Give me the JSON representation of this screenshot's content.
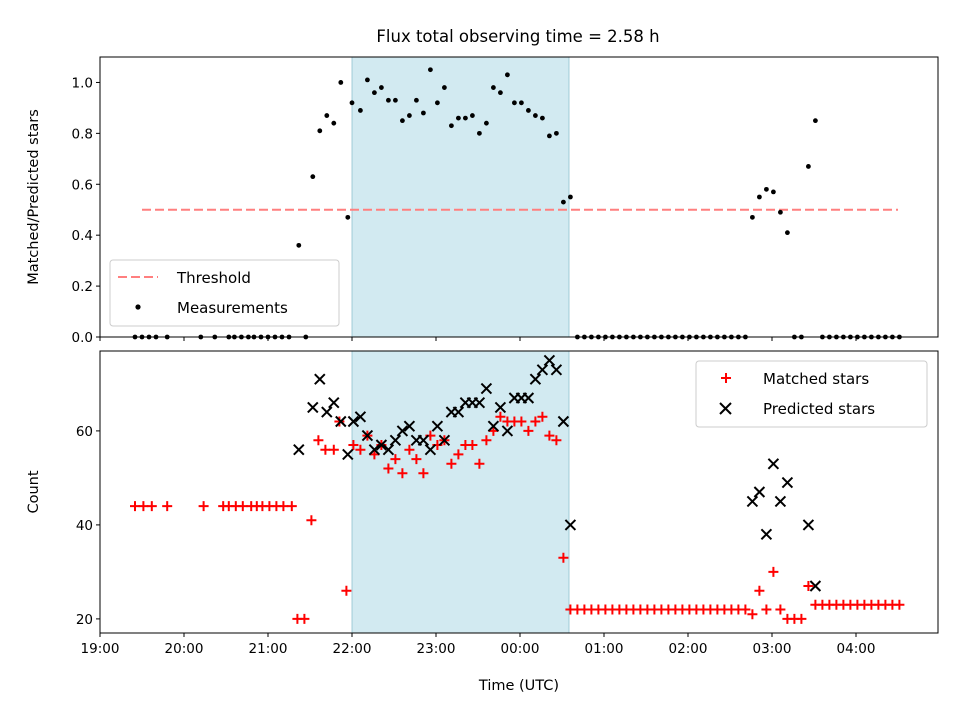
{
  "title": "Flux total observing time = 2.58 h",
  "colors": {
    "threshold": "#ff7f7f",
    "measurement": "#000000",
    "matched": "#ff0000",
    "predicted": "#000000",
    "shade": "#add8e6"
  },
  "chart_data": [
    {
      "type": "scatter",
      "panel": "top",
      "ylabel": "Matched/Predicted stars",
      "ylim": [
        0,
        1.1
      ],
      "yticks": [
        "0.0",
        "0.2",
        "0.4",
        "0.6",
        "0.8",
        "1.0"
      ],
      "xlim": [
        "19:00",
        "04:55"
      ],
      "shaded_interval": [
        "22:00",
        "00:35"
      ],
      "threshold": {
        "label": "Threshold",
        "value": 0.5,
        "x": [
          "19:30",
          "04:30"
        ]
      },
      "series": [
        {
          "name": "Measurements",
          "points": [
            [
              "19:25",
              0.0
            ],
            [
              "19:30",
              0.0
            ],
            [
              "19:35",
              0.0
            ],
            [
              "19:40",
              0.0
            ],
            [
              "19:48",
              0.0
            ],
            [
              "20:12",
              0.0
            ],
            [
              "20:22",
              0.0
            ],
            [
              "20:32",
              0.0
            ],
            [
              "20:36",
              0.0
            ],
            [
              "20:41",
              0.0
            ],
            [
              "20:46",
              0.0
            ],
            [
              "20:50",
              0.0
            ],
            [
              "20:55",
              0.0
            ],
            [
              "21:00",
              0.0
            ],
            [
              "21:05",
              0.0
            ],
            [
              "21:10",
              0.0
            ],
            [
              "21:15",
              0.0
            ],
            [
              "21:22",
              0.36
            ],
            [
              "21:27",
              0.0
            ],
            [
              "21:32",
              0.63
            ],
            [
              "21:37",
              0.81
            ],
            [
              "21:42",
              0.87
            ],
            [
              "21:47",
              0.84
            ],
            [
              "21:52",
              1.0
            ],
            [
              "21:57",
              0.47
            ],
            [
              "22:00",
              0.92
            ],
            [
              "22:06",
              0.89
            ],
            [
              "22:11",
              1.01
            ],
            [
              "22:16",
              0.96
            ],
            [
              "22:21",
              0.98
            ],
            [
              "22:26",
              0.93
            ],
            [
              "22:31",
              0.93
            ],
            [
              "22:36",
              0.85
            ],
            [
              "22:41",
              0.87
            ],
            [
              "22:46",
              0.93
            ],
            [
              "22:51",
              0.88
            ],
            [
              "22:56",
              1.05
            ],
            [
              "23:01",
              0.92
            ],
            [
              "23:06",
              0.98
            ],
            [
              "23:11",
              0.83
            ],
            [
              "23:16",
              0.86
            ],
            [
              "23:21",
              0.86
            ],
            [
              "23:26",
              0.87
            ],
            [
              "23:31",
              0.8
            ],
            [
              "23:36",
              0.84
            ],
            [
              "23:41",
              0.98
            ],
            [
              "23:46",
              0.96
            ],
            [
              "23:51",
              1.03
            ],
            [
              "23:56",
              0.92
            ],
            [
              "00:01",
              0.92
            ],
            [
              "00:06",
              0.89
            ],
            [
              "00:11",
              0.87
            ],
            [
              "00:16",
              0.86
            ],
            [
              "00:21",
              0.79
            ],
            [
              "00:26",
              0.8
            ],
            [
              "00:31",
              0.53
            ],
            [
              "00:36",
              0.55
            ],
            [
              "00:41",
              0.0
            ],
            [
              "00:46",
              0.0
            ],
            [
              "00:51",
              0.0
            ],
            [
              "00:56",
              0.0
            ],
            [
              "01:01",
              0.0
            ],
            [
              "01:06",
              0.0
            ],
            [
              "01:11",
              0.0
            ],
            [
              "01:16",
              0.0
            ],
            [
              "01:21",
              0.0
            ],
            [
              "01:26",
              0.0
            ],
            [
              "01:31",
              0.0
            ],
            [
              "01:36",
              0.0
            ],
            [
              "01:41",
              0.0
            ],
            [
              "01:46",
              0.0
            ],
            [
              "01:51",
              0.0
            ],
            [
              "01:56",
              0.0
            ],
            [
              "02:01",
              0.0
            ],
            [
              "02:06",
              0.0
            ],
            [
              "02:11",
              0.0
            ],
            [
              "02:16",
              0.0
            ],
            [
              "02:21",
              0.0
            ],
            [
              "02:26",
              0.0
            ],
            [
              "02:31",
              0.0
            ],
            [
              "02:36",
              0.0
            ],
            [
              "02:41",
              0.0
            ],
            [
              "02:46",
              0.47
            ],
            [
              "02:51",
              0.55
            ],
            [
              "02:56",
              0.58
            ],
            [
              "03:01",
              0.57
            ],
            [
              "03:06",
              0.49
            ],
            [
              "03:11",
              0.41
            ],
            [
              "03:16",
              0.0
            ],
            [
              "03:21",
              0.0
            ],
            [
              "03:26",
              0.67
            ],
            [
              "03:31",
              0.85
            ],
            [
              "03:36",
              0.0
            ],
            [
              "03:41",
              0.0
            ],
            [
              "03:46",
              0.0
            ],
            [
              "03:51",
              0.0
            ],
            [
              "03:56",
              0.0
            ],
            [
              "04:01",
              0.0
            ],
            [
              "04:06",
              0.0
            ],
            [
              "04:11",
              0.0
            ],
            [
              "04:16",
              0.0
            ],
            [
              "04:21",
              0.0
            ],
            [
              "04:26",
              0.0
            ],
            [
              "04:31",
              0.0
            ]
          ]
        }
      ],
      "legend": {
        "placement": "lower-left",
        "entries": [
          "Threshold",
          "Measurements"
        ]
      }
    },
    {
      "type": "scatter",
      "panel": "bottom",
      "xlabel": "Time (UTC)",
      "ylabel": "Count",
      "ylim": [
        17,
        77
      ],
      "yticks": [
        "20",
        "40",
        "60"
      ],
      "xlim": [
        "19:00",
        "04:55"
      ],
      "xticks": [
        "19:00",
        "20:00",
        "21:00",
        "22:00",
        "23:00",
        "00:00",
        "01:00",
        "02:00",
        "03:00",
        "04:00"
      ],
      "shaded_interval": [
        "22:00",
        "00:35"
      ],
      "series": [
        {
          "name": "Matched stars",
          "marker": "plus",
          "points": [
            [
              "19:25",
              44
            ],
            [
              "19:31",
              44
            ],
            [
              "19:37",
              44
            ],
            [
              "19:48",
              44
            ],
            [
              "20:14",
              44
            ],
            [
              "20:28",
              44
            ],
            [
              "20:32",
              44
            ],
            [
              "20:37",
              44
            ],
            [
              "20:42",
              44
            ],
            [
              "20:48",
              44
            ],
            [
              "20:52",
              44
            ],
            [
              "20:56",
              44
            ],
            [
              "21:01",
              44
            ],
            [
              "21:06",
              44
            ],
            [
              "21:11",
              44
            ],
            [
              "21:17",
              44
            ],
            [
              "21:21",
              20
            ],
            [
              "21:26",
              20
            ],
            [
              "21:31",
              41
            ],
            [
              "21:36",
              58
            ],
            [
              "21:41",
              56
            ],
            [
              "21:47",
              56
            ],
            [
              "21:51",
              62
            ],
            [
              "21:56",
              26
            ],
            [
              "22:01",
              57
            ],
            [
              "22:06",
              56
            ],
            [
              "22:11",
              59
            ],
            [
              "22:16",
              55
            ],
            [
              "22:21",
              57
            ],
            [
              "22:26",
              52
            ],
            [
              "22:31",
              54
            ],
            [
              "22:36",
              51
            ],
            [
              "22:41",
              56
            ],
            [
              "22:46",
              54
            ],
            [
              "22:51",
              51
            ],
            [
              "22:56",
              59
            ],
            [
              "23:01",
              57
            ],
            [
              "23:06",
              58
            ],
            [
              "23:11",
              53
            ],
            [
              "23:16",
              55
            ],
            [
              "23:21",
              57
            ],
            [
              "23:26",
              57
            ],
            [
              "23:31",
              53
            ],
            [
              "23:36",
              58
            ],
            [
              "23:41",
              60
            ],
            [
              "23:46",
              63
            ],
            [
              "23:51",
              62
            ],
            [
              "23:56",
              62
            ],
            [
              "00:01",
              62
            ],
            [
              "00:06",
              60
            ],
            [
              "00:11",
              62
            ],
            [
              "00:16",
              63
            ],
            [
              "00:21",
              59
            ],
            [
              "00:26",
              58
            ],
            [
              "00:31",
              33
            ],
            [
              "00:36",
              22
            ],
            [
              "00:41",
              22
            ],
            [
              "00:46",
              22
            ],
            [
              "00:51",
              22
            ],
            [
              "00:56",
              22
            ],
            [
              "01:01",
              22
            ],
            [
              "01:06",
              22
            ],
            [
              "01:11",
              22
            ],
            [
              "01:16",
              22
            ],
            [
              "01:21",
              22
            ],
            [
              "01:26",
              22
            ],
            [
              "01:31",
              22
            ],
            [
              "01:36",
              22
            ],
            [
              "01:41",
              22
            ],
            [
              "01:46",
              22
            ],
            [
              "01:51",
              22
            ],
            [
              "01:56",
              22
            ],
            [
              "02:01",
              22
            ],
            [
              "02:06",
              22
            ],
            [
              "02:11",
              22
            ],
            [
              "02:16",
              22
            ],
            [
              "02:21",
              22
            ],
            [
              "02:26",
              22
            ],
            [
              "02:31",
              22
            ],
            [
              "02:36",
              22
            ],
            [
              "02:41",
              22
            ],
            [
              "02:46",
              21
            ],
            [
              "02:51",
              26
            ],
            [
              "02:56",
              22
            ],
            [
              "03:01",
              30
            ],
            [
              "03:06",
              22
            ],
            [
              "03:11",
              20
            ],
            [
              "03:16",
              20
            ],
            [
              "03:21",
              20
            ],
            [
              "03:26",
              27
            ],
            [
              "03:31",
              23
            ],
            [
              "03:36",
              23
            ],
            [
              "03:41",
              23
            ],
            [
              "03:46",
              23
            ],
            [
              "03:51",
              23
            ],
            [
              "03:56",
              23
            ],
            [
              "04:01",
              23
            ],
            [
              "04:06",
              23
            ],
            [
              "04:11",
              23
            ],
            [
              "04:16",
              23
            ],
            [
              "04:21",
              23
            ],
            [
              "04:26",
              23
            ],
            [
              "04:31",
              23
            ]
          ]
        },
        {
          "name": "Predicted stars",
          "marker": "x",
          "points": [
            [
              "21:22",
              56
            ],
            [
              "21:32",
              65
            ],
            [
              "21:37",
              71
            ],
            [
              "21:42",
              64
            ],
            [
              "21:47",
              66
            ],
            [
              "21:52",
              62
            ],
            [
              "21:57",
              55
            ],
            [
              "22:01",
              62
            ],
            [
              "22:06",
              63
            ],
            [
              "22:11",
              59
            ],
            [
              "22:16",
              56
            ],
            [
              "22:21",
              57
            ],
            [
              "22:26",
              56
            ],
            [
              "22:31",
              58
            ],
            [
              "22:36",
              60
            ],
            [
              "22:41",
              61
            ],
            [
              "22:46",
              58
            ],
            [
              "22:51",
              58
            ],
            [
              "22:56",
              56
            ],
            [
              "23:01",
              61
            ],
            [
              "23:06",
              58
            ],
            [
              "23:11",
              64
            ],
            [
              "23:16",
              64
            ],
            [
              "23:21",
              66
            ],
            [
              "23:26",
              66
            ],
            [
              "23:31",
              66
            ],
            [
              "23:36",
              69
            ],
            [
              "23:41",
              61
            ],
            [
              "23:46",
              65
            ],
            [
              "23:51",
              60
            ],
            [
              "23:56",
              67
            ],
            [
              "00:01",
              67
            ],
            [
              "00:06",
              67
            ],
            [
              "00:11",
              71
            ],
            [
              "00:16",
              73
            ],
            [
              "00:21",
              75
            ],
            [
              "00:26",
              73
            ],
            [
              "00:31",
              62
            ],
            [
              "00:36",
              40
            ],
            [
              "02:46",
              45
            ],
            [
              "02:51",
              47
            ],
            [
              "02:56",
              38
            ],
            [
              "03:01",
              53
            ],
            [
              "03:06",
              45
            ],
            [
              "03:11",
              49
            ],
            [
              "03:26",
              40
            ],
            [
              "03:31",
              27
            ]
          ]
        }
      ],
      "legend": {
        "placement": "upper-right",
        "entries": [
          "Matched stars",
          "Predicted stars"
        ]
      }
    }
  ]
}
